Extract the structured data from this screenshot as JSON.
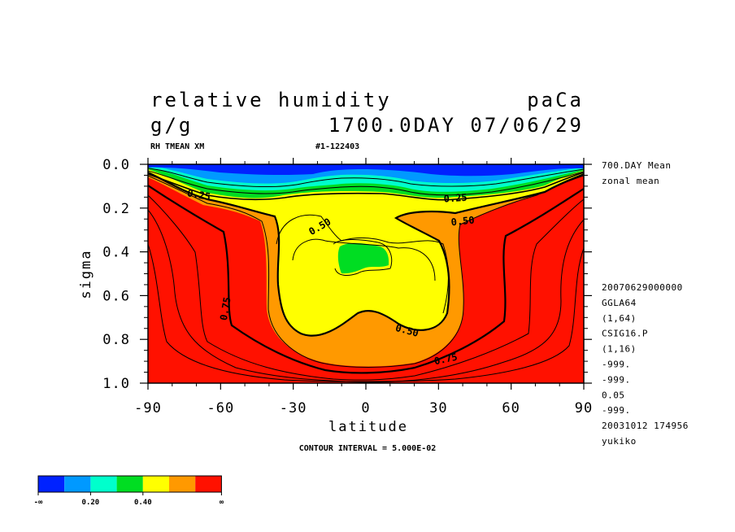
{
  "header": {
    "title_left": "relative humidity",
    "title_right": "paCa",
    "units": "g/g",
    "time": "1700.0DAY 07/06/29",
    "var_code": "RH TMEAN XM",
    "run_id": "#1-122403",
    "contour_interval": "CONTOUR INTERVAL = 5.000E-02"
  },
  "side_info": {
    "top": [
      "700.DAY Mean",
      "zonal mean"
    ],
    "bottom": [
      "20070629000000",
      "GGLA64",
      "(1,64)",
      "CSIG16.P",
      "(1,16)",
      "-999.",
      "-999.",
      "0.05",
      "-999.",
      "20031012 174956",
      "yukiko"
    ]
  },
  "chart_data": {
    "type": "heatmap",
    "xlabel": "latitude",
    "ylabel": "sigma",
    "xlim": [
      -90,
      90
    ],
    "ylim": [
      0.0,
      1.0
    ],
    "x_ticks": [
      "-90",
      "-60",
      "-30",
      "0",
      "30",
      "60",
      "90"
    ],
    "y_ticks": [
      "0.0",
      "0.2",
      "0.4",
      "0.6",
      "0.8",
      "1.0"
    ],
    "contour_labels": [
      {
        "text": "0.25",
        "lat": -69,
        "sigma": 0.14
      },
      {
        "text": "0.25",
        "lat": 37,
        "sigma": 0.155
      },
      {
        "text": "0.50",
        "lat": -19,
        "sigma": 0.285
      },
      {
        "text": "0.50",
        "lat": 40,
        "sigma": 0.26
      },
      {
        "text": "0.75",
        "lat": -58,
        "sigma": 0.66
      },
      {
        "text": "0.50",
        "lat": 17,
        "sigma": 0.76
      },
      {
        "text": "0.75",
        "lat": 33,
        "sigma": 0.89
      }
    ],
    "colorbar": {
      "colors": [
        "#0022ff",
        "#0099ff",
        "#00ffcc",
        "#00dd22",
        "#ffff00",
        "#ff9900",
        "#ff1100"
      ],
      "tick_labels": [
        "-∞",
        "0.20",
        "0.40",
        "∞"
      ]
    }
  }
}
